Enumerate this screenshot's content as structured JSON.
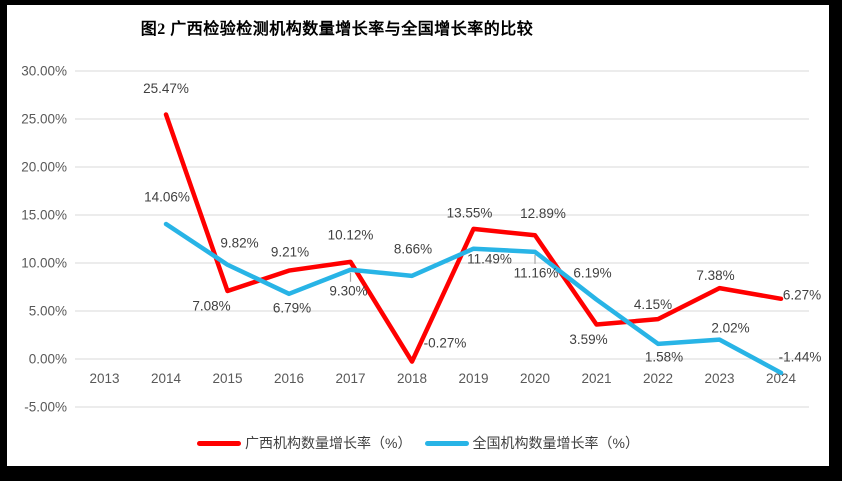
{
  "frame": {
    "background": "#000000",
    "canvas_background": "#ffffff"
  },
  "chart_data": {
    "type": "line",
    "title": "图2 广西检验检测机构数量增长率与全国增长率的比较",
    "categories": [
      "2013",
      "2014",
      "2015",
      "2016",
      "2017",
      "2018",
      "2019",
      "2020",
      "2021",
      "2022",
      "2023",
      "2024"
    ],
    "y_axis": {
      "min": -5,
      "max": 30,
      "step": 5,
      "ticks": [
        {
          "value": 30,
          "label": "30.00%"
        },
        {
          "value": 25,
          "label": "25.00%"
        },
        {
          "value": 20,
          "label": "20.00%"
        },
        {
          "value": 15,
          "label": "15.00%"
        },
        {
          "value": 10,
          "label": "10.00%"
        },
        {
          "value": 5,
          "label": "5.00%"
        },
        {
          "value": 0,
          "label": "0.00%"
        },
        {
          "value": -5,
          "label": "-5.00%"
        }
      ]
    },
    "grid": true,
    "legend_position": "bottom",
    "series": [
      {
        "id": "guangxi",
        "name": "广西机构数量增长率（%）",
        "color": "#ff0000",
        "values": [
          null,
          25.47,
          7.08,
          9.21,
          10.12,
          -0.27,
          13.55,
          12.89,
          3.59,
          4.15,
          7.38,
          6.27
        ],
        "labels": [
          "",
          "25.47%",
          "7.08%",
          "9.21%",
          "10.12%",
          "-0.27%",
          "13.55%",
          "12.89%",
          "3.59%",
          "4.15%",
          "7.38%",
          "6.27%"
        ],
        "label_offsets": [
          null,
          [
            0,
            -26
          ],
          [
            -16,
            15
          ],
          [
            1,
            -19
          ],
          [
            0,
            -27
          ],
          [
            33,
            -19
          ],
          [
            -4,
            -16
          ],
          [
            8,
            -22
          ],
          [
            -8,
            15
          ],
          [
            -5,
            -15
          ],
          [
            -4,
            -13
          ],
          [
            21,
            -4
          ]
        ],
        "leader_point_indexes": []
      },
      {
        "id": "national",
        "name": "全国机构数量增长率（%）",
        "color": "#28b4e6",
        "values": [
          null,
          14.06,
          9.82,
          6.79,
          9.3,
          8.66,
          11.49,
          11.16,
          6.19,
          1.58,
          2.02,
          -1.44
        ],
        "labels": [
          "",
          "14.06%",
          "9.82%",
          "6.79%",
          "9.30%",
          "8.66%",
          "11.49%",
          "11.16%",
          "6.19%",
          "1.58%",
          "2.02%",
          "-1.44%"
        ],
        "label_offsets": [
          null,
          [
            1,
            -27
          ],
          [
            12,
            -22
          ],
          [
            3,
            14
          ],
          [
            -2,
            21
          ],
          [
            1,
            -27
          ],
          [
            16,
            10
          ],
          [
            1,
            21
          ],
          [
            -4,
            -27
          ],
          [
            6,
            13
          ],
          [
            11,
            -12
          ],
          [
            19,
            -16
          ]
        ],
        "leader_point_indexes": [
          4,
          7
        ]
      }
    ],
    "colors": {
      "gridline": "#d9d9d9",
      "tick_label": "#595959",
      "data_label": "#404040",
      "leader": "#a6a6a6",
      "title": "#000000"
    }
  }
}
